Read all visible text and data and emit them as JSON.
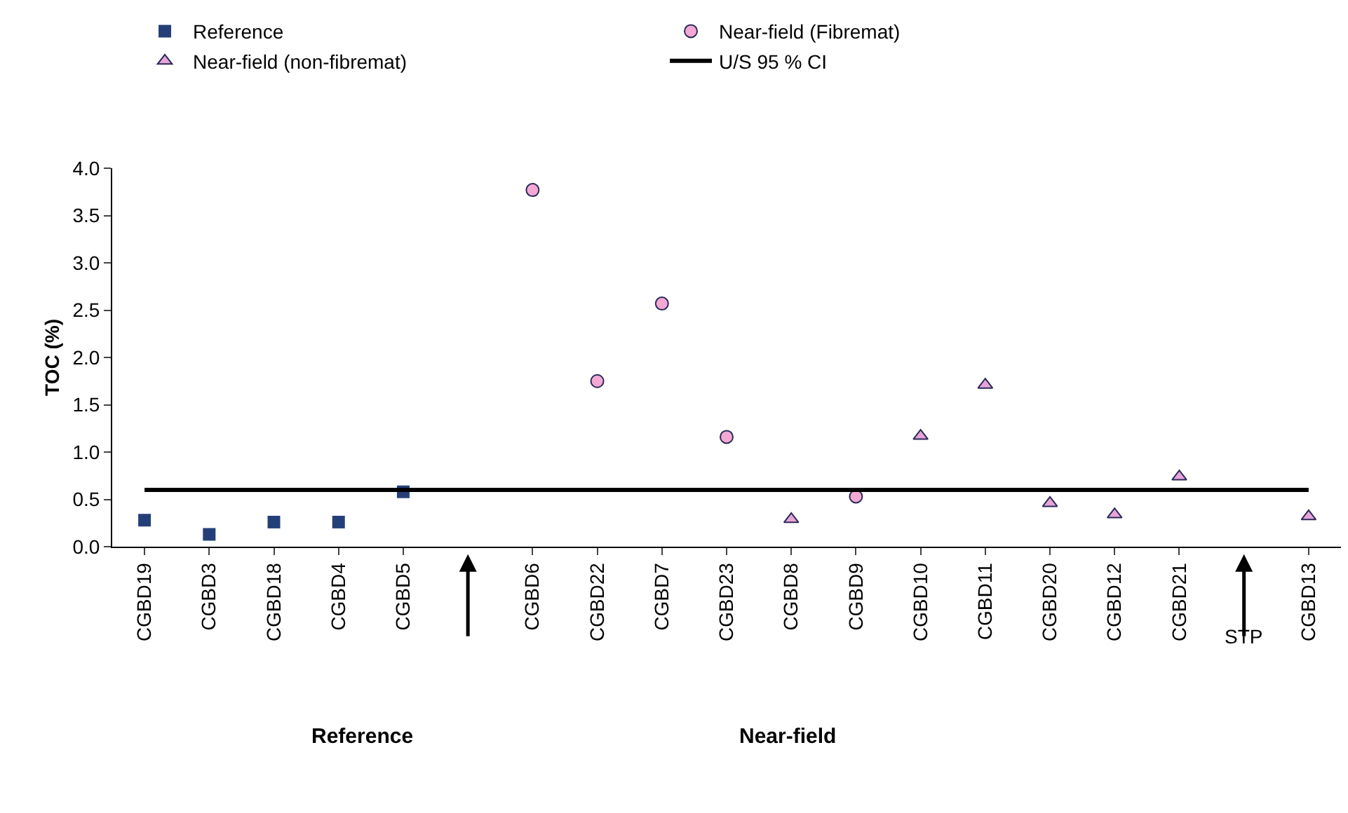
{
  "chart_data": {
    "type": "scatter",
    "ylabel": "TOC (%)",
    "categories": [
      "CGBD19",
      "CGBD3",
      "CGBD18",
      "CGBD4",
      "CGBD5",
      null,
      "CGBD6",
      "CGBD22",
      "CGBD7",
      "CGBD23",
      "CGBD8",
      "CGBD9",
      "CGBD10",
      "CGBD11",
      "CGBD20",
      "CGBD12",
      "CGBD21",
      null,
      "CGBD13"
    ],
    "series": [
      {
        "name": "Reference",
        "type": "scatter",
        "marker": "square",
        "color": "#243f78",
        "values": [
          0.28,
          0.13,
          0.26,
          0.26,
          0.58,
          null,
          null,
          null,
          null,
          null,
          null,
          null,
          null,
          null,
          null,
          null,
          null,
          null,
          null
        ]
      },
      {
        "name": "Near-field (Fibremat)",
        "type": "scatter",
        "marker": "circle",
        "color": "#f4a8d4",
        "values": [
          null,
          null,
          null,
          null,
          null,
          null,
          3.77,
          1.75,
          2.57,
          1.16,
          null,
          0.53,
          null,
          null,
          null,
          null,
          null,
          null,
          null
        ]
      },
      {
        "name": "Near-field (non-fibremat)",
        "type": "scatter",
        "marker": "triangle",
        "color": "#e8a4d8",
        "values": [
          null,
          null,
          null,
          null,
          null,
          null,
          null,
          null,
          null,
          null,
          0.29,
          null,
          1.17,
          1.71,
          0.46,
          0.34,
          0.74,
          null,
          0.32
        ]
      },
      {
        "name": "U/S 95 % CI",
        "type": "line",
        "marker": "none",
        "color": "#000000",
        "values": [
          0.6,
          0.6,
          0.6,
          0.6,
          0.6,
          0.6,
          0.6,
          0.6,
          0.6,
          0.6,
          0.6,
          0.6,
          0.6,
          0.6,
          0.6,
          0.6,
          0.6,
          0.6,
          0.6
        ]
      }
    ],
    "annotations": [
      "STP",
      "Reference",
      "Near-field"
    ],
    "ylim": [
      0,
      4
    ],
    "yticks": [
      {
        "value": 0,
        "label": "0.0"
      },
      {
        "value": 0.5,
        "label": "0.5"
      },
      {
        "value": 1,
        "label": "1.0"
      },
      {
        "value": 1.5,
        "label": "1.5"
      },
      {
        "value": 2,
        "label": "2.0"
      },
      {
        "value": 2.5,
        "label": "2.5"
      },
      {
        "value": 3,
        "label": "3.0"
      },
      {
        "value": 3.5,
        "label": "3.5"
      },
      {
        "value": 4,
        "label": "4.0"
      }
    ],
    "grid": false,
    "legend": "top"
  }
}
